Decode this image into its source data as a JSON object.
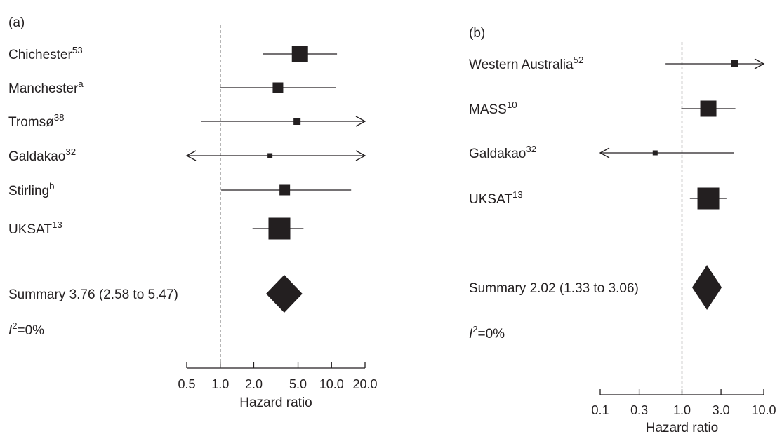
{
  "chart_data": [
    {
      "panel": "(a)",
      "type": "forest",
      "xscale": "log",
      "xlim": [
        0.5,
        20
      ],
      "xticks": [
        "0.5",
        "1.0",
        "2.0",
        "5.0",
        "10.0",
        "20.0"
      ],
      "xlabel": "Hazard ratio",
      "reference_line": 1.0,
      "studies": [
        {
          "name": "Chichester",
          "sup": "53",
          "hr": 5.2,
          "lo": 2.4,
          "hi": 11.2,
          "weight": "large",
          "lo_arrow": false,
          "hi_arrow": false
        },
        {
          "name": "Manchester",
          "sup": "a",
          "hr": 3.3,
          "lo": 1.0,
          "hi": 11.0,
          "weight": "medium",
          "lo_arrow": false,
          "hi_arrow": false
        },
        {
          "name": "Tromsø",
          "sup": "38",
          "hr": 4.9,
          "lo": 0.67,
          "hi": 20.0,
          "weight": "small",
          "lo_arrow": false,
          "hi_arrow": true
        },
        {
          "name": "Galdakao",
          "sup": "32",
          "hr": 2.8,
          "lo": 0.5,
          "hi": 20.0,
          "weight": "tiny",
          "lo_arrow": true,
          "hi_arrow": true
        },
        {
          "name": "Stirling",
          "sup": "b",
          "hr": 3.8,
          "lo": 1.02,
          "hi": 15.0,
          "weight": "medium",
          "lo_arrow": false,
          "hi_arrow": false
        },
        {
          "name": "UKSAT",
          "sup": "13",
          "hr": 3.4,
          "lo": 1.95,
          "hi": 5.6,
          "weight": "xlarge",
          "lo_arrow": false,
          "hi_arrow": false
        }
      ],
      "summary": {
        "label": "Summary 3.76 (2.58 to 5.47)",
        "hr": 3.76,
        "lo": 2.58,
        "hi": 5.47
      },
      "heterogeneity": {
        "symbol": "I",
        "sup": "2",
        "value": "=0%"
      }
    },
    {
      "panel": "(b)",
      "type": "forest",
      "xscale": "log",
      "xlim": [
        0.1,
        10
      ],
      "xticks": [
        "0.1",
        "0.3",
        "1.0",
        "3.0",
        "10.0"
      ],
      "xlabel": "Hazard ratio",
      "reference_line": 1.0,
      "studies": [
        {
          "name": "Western Australia",
          "sup": "52",
          "hr": 4.4,
          "lo": 0.63,
          "hi": 10.0,
          "weight": "small",
          "lo_arrow": false,
          "hi_arrow": true
        },
        {
          "name": "MASS",
          "sup": "10",
          "hr": 2.1,
          "lo": 0.98,
          "hi": 4.5,
          "weight": "large",
          "lo_arrow": false,
          "hi_arrow": false
        },
        {
          "name": "Galdakao",
          "sup": "32",
          "hr": 0.47,
          "lo": 0.1,
          "hi": 4.3,
          "weight": "tiny",
          "lo_arrow": true,
          "hi_arrow": false
        },
        {
          "name": "UKSAT",
          "sup": "13",
          "hr": 2.1,
          "lo": 1.25,
          "hi": 3.5,
          "weight": "xlarge",
          "lo_arrow": false,
          "hi_arrow": false
        }
      ],
      "summary": {
        "label": "Summary 2.02 (1.33 to 3.06)",
        "hr": 2.02,
        "lo": 1.33,
        "hi": 3.06
      },
      "heterogeneity": {
        "symbol": "I",
        "sup": "2",
        "value": "=0%"
      }
    }
  ]
}
